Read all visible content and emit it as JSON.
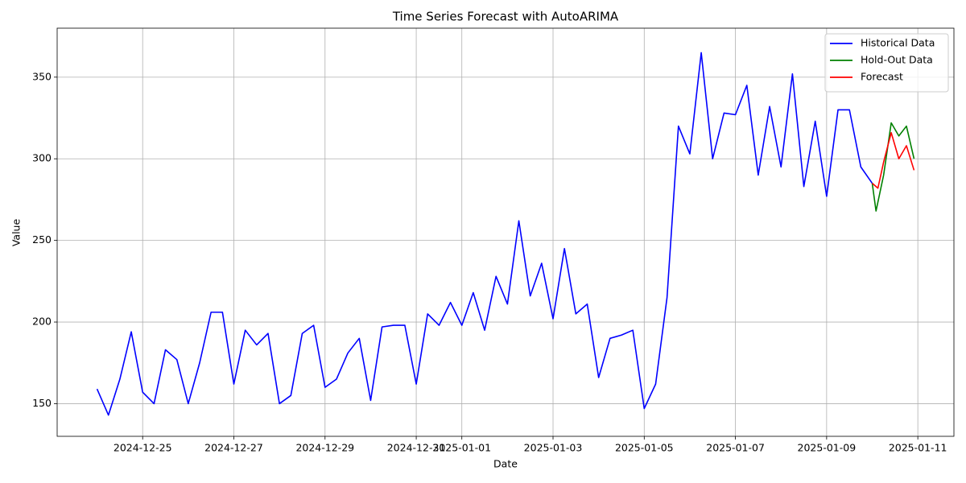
{
  "chart_data": {
    "type": "line",
    "title": "Time Series Forecast with AutoARIMA",
    "xlabel": "Date",
    "ylabel": "Value",
    "xlim": [
      "2024-12-23 03:00",
      "2025-01-11 19:00"
    ],
    "xticks": [
      "2024-12-25",
      "2024-12-27",
      "2024-12-29",
      "2024-12-31",
      "2025-01-01",
      "2025-01-03",
      "2025-01-05",
      "2025-01-07",
      "2025-01-09",
      "2025-01-11"
    ],
    "ylim": [
      130,
      380
    ],
    "yticks": [
      150,
      200,
      250,
      300,
      350
    ],
    "grid": true,
    "legend": "upper right",
    "series": [
      {
        "name": "Historical Data",
        "color": "#0000ff",
        "x": [
          "2024-12-24 00:00",
          "2024-12-24 06:00",
          "2024-12-24 12:00",
          "2024-12-24 18:00",
          "2024-12-25 00:00",
          "2024-12-25 06:00",
          "2024-12-25 12:00",
          "2024-12-25 18:00",
          "2024-12-26 00:00",
          "2024-12-26 06:00",
          "2024-12-26 12:00",
          "2024-12-26 18:00",
          "2024-12-27 00:00",
          "2024-12-27 06:00",
          "2024-12-27 12:00",
          "2024-12-27 18:00",
          "2024-12-28 00:00",
          "2024-12-28 06:00",
          "2024-12-28 12:00",
          "2024-12-28 18:00",
          "2024-12-29 00:00",
          "2024-12-29 06:00",
          "2024-12-29 12:00",
          "2024-12-29 18:00",
          "2024-12-30 00:00",
          "2024-12-30 06:00",
          "2024-12-30 12:00",
          "2024-12-30 18:00",
          "2024-12-31 00:00",
          "2024-12-31 06:00",
          "2024-12-31 12:00",
          "2024-12-31 18:00",
          "2025-01-01 00:00",
          "2025-01-01 06:00",
          "2025-01-01 12:00",
          "2025-01-01 18:00",
          "2025-01-02 00:00",
          "2025-01-02 06:00",
          "2025-01-02 12:00",
          "2025-01-02 18:00",
          "2025-01-03 00:00",
          "2025-01-03 06:00",
          "2025-01-03 12:00",
          "2025-01-03 18:00",
          "2025-01-04 00:00",
          "2025-01-04 06:00",
          "2025-01-04 12:00",
          "2025-01-04 18:00",
          "2025-01-05 00:00",
          "2025-01-05 06:00",
          "2025-01-05 12:00",
          "2025-01-05 18:00",
          "2025-01-06 00:00",
          "2025-01-06 06:00",
          "2025-01-06 12:00",
          "2025-01-06 18:00",
          "2025-01-07 00:00",
          "2025-01-07 06:00",
          "2025-01-07 12:00",
          "2025-01-07 18:00",
          "2025-01-08 00:00",
          "2025-01-08 06:00",
          "2025-01-08 12:00",
          "2025-01-08 18:00",
          "2025-01-09 00:00",
          "2025-01-09 06:00",
          "2025-01-09 12:00",
          "2025-01-09 18:00",
          "2025-01-10 00:00"
        ],
        "values": [
          159,
          143,
          165,
          194,
          157,
          150,
          183,
          177,
          150,
          175,
          206,
          206,
          162,
          195,
          186,
          193,
          150,
          155,
          193,
          198,
          160,
          165,
          181,
          190,
          152,
          197,
          198,
          198,
          162,
          205,
          198,
          212,
          198,
          218,
          195,
          228,
          211,
          262,
          216,
          236,
          202,
          245,
          205,
          211,
          166,
          190,
          192,
          195,
          147,
          162,
          215,
          320,
          303,
          365,
          300,
          328,
          327,
          345,
          290,
          332,
          295,
          352,
          283,
          323,
          277,
          330,
          330,
          295,
          285
        ]
      },
      {
        "name": "Hold-Out Data",
        "color": "#008000",
        "x": [
          "2025-01-10 00:00",
          "2025-01-10 02:00",
          "2025-01-10 06:00",
          "2025-01-10 10:00",
          "2025-01-10 14:00",
          "2025-01-10 18:00",
          "2025-01-10 22:00"
        ],
        "values": [
          285,
          268,
          290,
          322,
          314,
          320,
          300
        ]
      },
      {
        "name": "Forecast",
        "color": "#ff0000",
        "x": [
          "2025-01-10 00:00",
          "2025-01-10 03:00",
          "2025-01-10 06:00",
          "2025-01-10 10:00",
          "2025-01-10 14:00",
          "2025-01-10 18:00",
          "2025-01-10 22:00"
        ],
        "values": [
          285,
          282,
          298,
          316,
          300,
          308,
          293
        ]
      }
    ]
  }
}
